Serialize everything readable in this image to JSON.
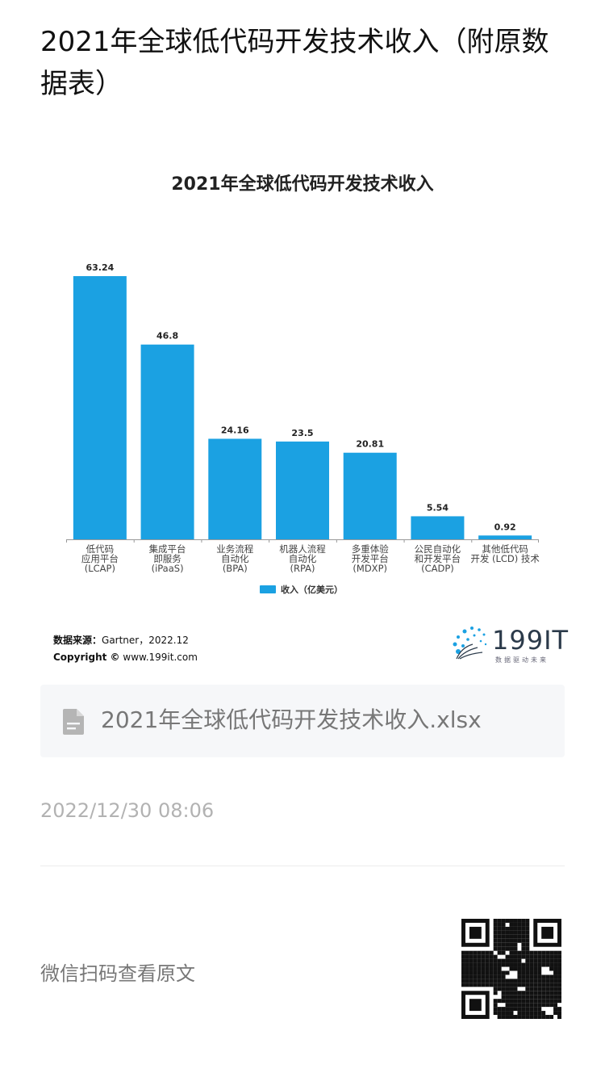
{
  "article": {
    "title": "2021年全球低代码开发技术收入（附原数据表）",
    "timestamp": "2022/12/30 08:06",
    "scan_label": "微信扫码查看原文"
  },
  "attachment": {
    "file_name": "2021年全球低代码开发技术收入.xlsx",
    "icon": "document-icon"
  },
  "source": {
    "label": "数据来源：",
    "value": "Gartner，2022.12",
    "copyright_label": "Copyright ©",
    "copyright_value": "www.199it.com"
  },
  "brand": {
    "name": "199IT",
    "tagline": "数据驱动未来"
  },
  "colors": {
    "bar": "#1BA1E2",
    "axis": "#999999",
    "text": "#333333"
  },
  "chart_data": {
    "type": "bar",
    "title": "2021年全球低代码开发技术收入",
    "categories": [
      [
        "低代码",
        "应用平台",
        "(LCAP)"
      ],
      [
        "集成平台",
        "即服务",
        "(iPaaS)"
      ],
      [
        "业务流程",
        "自动化",
        "(BPA)"
      ],
      [
        "机器人流程",
        "自动化",
        "(RPA)"
      ],
      [
        "多重体验",
        "开发平台",
        "(MDXP)"
      ],
      [
        "公民自动化",
        "和开发平台",
        "(CADP)"
      ],
      [
        "其他低代码",
        "开发 (LCD) 技术"
      ]
    ],
    "series": [
      {
        "name": "收入（亿美元）",
        "values": [
          63.24,
          46.8,
          24.16,
          23.5,
          20.81,
          5.54,
          0.92
        ]
      }
    ],
    "value_labels": [
      "63.24",
      "46.8",
      "24.16",
      "23.5",
      "20.81",
      "5.54",
      "0.92"
    ],
    "ylim": [
      0,
      63.24
    ],
    "grid": false,
    "legend_position": "bottom"
  }
}
